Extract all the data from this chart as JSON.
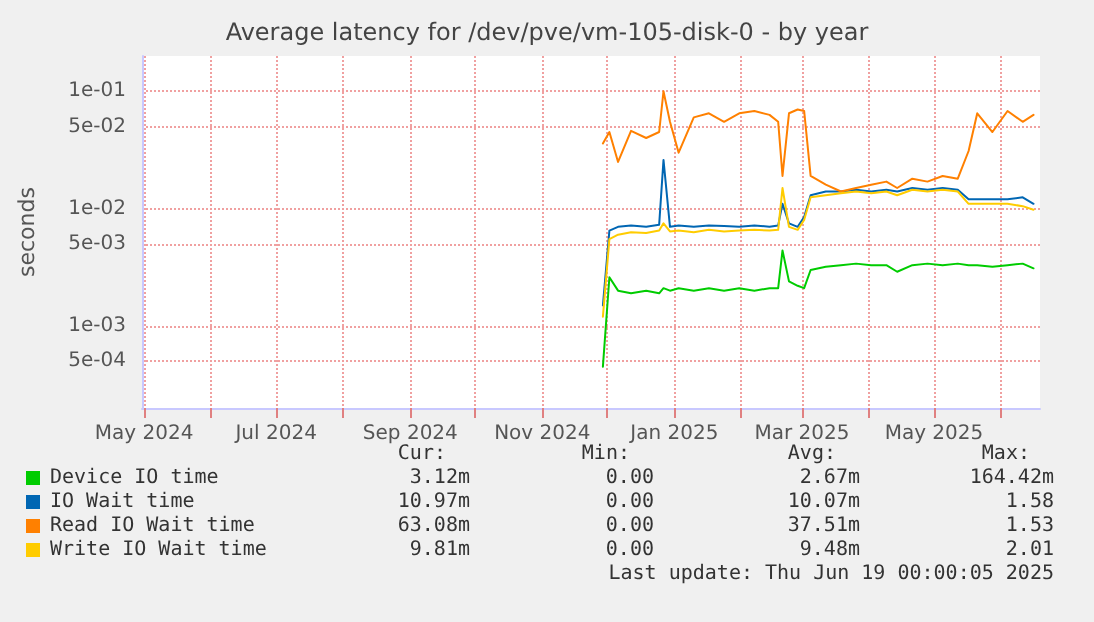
{
  "chart_data": {
    "type": "line",
    "title": "Average latency for /dev/pve/vm-105-disk-0 - by year",
    "ylabel": "seconds",
    "log": "y",
    "grid": true,
    "legend": "bottom",
    "marker": "none",
    "line_style": "solid",
    "xlim": [
      "2024-04-30",
      "2025-06-19"
    ],
    "xticks": [
      {
        "value": "2024-05-01",
        "label": "May 2024"
      },
      {
        "value": "2024-06-01",
        "label": null
      },
      {
        "value": "2024-07-01",
        "label": "Jul 2024"
      },
      {
        "value": "2024-08-01",
        "label": null
      },
      {
        "value": "2024-09-01",
        "label": "Sep 2024"
      },
      {
        "value": "2024-10-01",
        "label": null
      },
      {
        "value": "2024-11-01",
        "label": "Nov 2024"
      },
      {
        "value": "2024-12-01",
        "label": null
      },
      {
        "value": "2025-01-01",
        "label": "Jan 2025"
      },
      {
        "value": "2025-02-01",
        "label": null
      },
      {
        "value": "2025-03-01",
        "label": "Mar 2025"
      },
      {
        "value": "2025-04-01",
        "label": null
      },
      {
        "value": "2025-05-01",
        "label": "May 2025"
      },
      {
        "value": "2025-06-01",
        "label": null
      }
    ],
    "ylim": [
      0.0002,
      0.2
    ],
    "yticks": [
      {
        "value": 0.0005,
        "label": "5e-04"
      },
      {
        "value": 0.001,
        "label": "1e-03"
      },
      {
        "value": 0.005,
        "label": "5e-03"
      },
      {
        "value": 0.01,
        "label": "1e-02"
      },
      {
        "value": 0.05,
        "label": "5e-02"
      },
      {
        "value": 0.1,
        "label": "1e-01"
      }
    ],
    "x": [
      "2024-11-29",
      "2024-12-02",
      "2024-12-06",
      "2024-12-12",
      "2024-12-19",
      "2024-12-25",
      "2024-12-27",
      "2024-12-30",
      "2025-01-03",
      "2025-01-10",
      "2025-01-17",
      "2025-01-24",
      "2025-01-31",
      "2025-02-07",
      "2025-02-14",
      "2025-02-18",
      "2025-02-20",
      "2025-02-23",
      "2025-02-27",
      "2025-03-02",
      "2025-03-05",
      "2025-03-12",
      "2025-03-19",
      "2025-03-26",
      "2025-04-02",
      "2025-04-09",
      "2025-04-14",
      "2025-04-21",
      "2025-04-28",
      "2025-05-05",
      "2025-05-12",
      "2025-05-17",
      "2025-05-21",
      "2025-05-28",
      "2025-06-04",
      "2025-06-11",
      "2025-06-16"
    ],
    "series": [
      {
        "name": "Device IO time",
        "color": "#00cc00",
        "values": [
          0.00045,
          0.0026,
          0.002,
          0.0019,
          0.002,
          0.0019,
          0.0021,
          0.002,
          0.0021,
          0.002,
          0.0021,
          0.002,
          0.0021,
          0.002,
          0.0021,
          0.0021,
          0.0044,
          0.0024,
          0.0022,
          0.0021,
          0.003,
          0.0032,
          0.0033,
          0.0034,
          0.0033,
          0.0033,
          0.0029,
          0.0033,
          0.0034,
          0.0033,
          0.0034,
          0.0033,
          0.0033,
          0.0032,
          0.0033,
          0.0034,
          0.0031
        ]
      },
      {
        "name": "IO Wait time",
        "color": "#0066b3",
        "values": [
          0.0015,
          0.0065,
          0.007,
          0.0072,
          0.007,
          0.0073,
          0.026,
          0.007,
          0.0072,
          0.007,
          0.0072,
          0.0071,
          0.007,
          0.0072,
          0.007,
          0.0072,
          0.011,
          0.0075,
          0.007,
          0.0085,
          0.013,
          0.014,
          0.014,
          0.0145,
          0.014,
          0.0145,
          0.014,
          0.015,
          0.0145,
          0.015,
          0.0145,
          0.012,
          0.012,
          0.012,
          0.012,
          0.0125,
          0.011
        ]
      },
      {
        "name": "Read IO Wait time",
        "color": "#ff8000",
        "values": [
          0.036,
          0.045,
          0.025,
          0.046,
          0.04,
          0.045,
          0.1,
          0.055,
          0.03,
          0.06,
          0.065,
          0.055,
          0.065,
          0.068,
          0.063,
          0.055,
          0.019,
          0.065,
          0.07,
          0.068,
          0.019,
          0.016,
          0.014,
          0.015,
          0.016,
          0.017,
          0.015,
          0.018,
          0.017,
          0.019,
          0.018,
          0.031,
          0.065,
          0.045,
          0.068,
          0.055,
          0.063
        ]
      },
      {
        "name": "Write IO Wait time",
        "color": "#ffcc00",
        "values": [
          0.0012,
          0.0055,
          0.006,
          0.0063,
          0.0062,
          0.0065,
          0.0075,
          0.0064,
          0.0065,
          0.0063,
          0.0066,
          0.0064,
          0.0065,
          0.0066,
          0.0065,
          0.0066,
          0.015,
          0.007,
          0.0066,
          0.008,
          0.0125,
          0.013,
          0.0135,
          0.014,
          0.0135,
          0.014,
          0.013,
          0.0145,
          0.014,
          0.0145,
          0.014,
          0.011,
          0.011,
          0.011,
          0.011,
          0.0105,
          0.0098
        ]
      }
    ],
    "annotations": [
      "Cur:",
      "Min:",
      "Avg:",
      "Max:",
      "3.12m",
      "0.00",
      "2.67m",
      "164.42m",
      "10.97m",
      "0.00",
      "10.07m",
      "1.58",
      "63.08m",
      "0.00",
      "37.51m",
      "1.53",
      "9.81m",
      "0.00",
      "9.48m",
      "2.01",
      "Last update: Thu Jun 19 00:00:05 2025"
    ]
  }
}
